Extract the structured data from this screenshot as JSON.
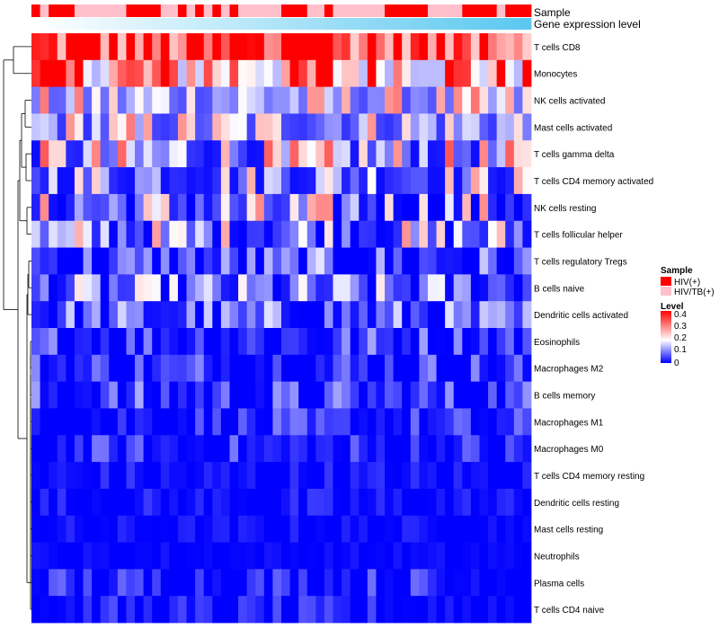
{
  "chart_data": {
    "type": "heatmap",
    "title": "",
    "annotation_tracks": [
      {
        "name": "Sample",
        "label": "Sample"
      },
      {
        "name": "Gene expression level",
        "label": "Gene expression level"
      }
    ],
    "sample_groups_legend_title": "Sample",
    "sample_groups": [
      {
        "label": "HIV(+)",
        "color": "#ff0000"
      },
      {
        "label": "HIV/TB(+)",
        "color": "#ffc0cb"
      }
    ],
    "sample_annotation": [
      0,
      1,
      0,
      0,
      0,
      1,
      1,
      1,
      1,
      1,
      1,
      0,
      0,
      0,
      0,
      1,
      1,
      0,
      1,
      0,
      1,
      0,
      1,
      0,
      1,
      1,
      1,
      1,
      1,
      0,
      0,
      0,
      1,
      1,
      0,
      1,
      1,
      1,
      1,
      1,
      1,
      0,
      0,
      0,
      0,
      0,
      1,
      1,
      1,
      1,
      0,
      0,
      0,
      0,
      1,
      0,
      0,
      0
    ],
    "gene_expression_gradient": [
      "#ffffff",
      "#5bc8f0"
    ],
    "colorbar": {
      "title": "Level",
      "ticks": [
        "0.4",
        "0.3",
        "0.2",
        "0.1",
        "0"
      ],
      "min": 0,
      "mid": 0.2,
      "max": 0.45,
      "low_color": "#0000ff",
      "mid_color": "#ffffff",
      "high_color": "#ff0000"
    },
    "n_columns": 58,
    "rows": [
      {
        "label": "T cells CD8",
        "base": 0.35,
        "spread": 0.1
      },
      {
        "label": "Monocytes",
        "base": 0.27,
        "spread": 0.13
      },
      {
        "label": "NK cells activated",
        "base": 0.13,
        "spread": 0.07
      },
      {
        "label": "Mast cells activated",
        "base": 0.12,
        "spread": 0.08
      },
      {
        "label": "T cells gamma delta",
        "base": 0.1,
        "spread": 0.09
      },
      {
        "label": "T cells CD4 memory activated",
        "base": 0.09,
        "spread": 0.08
      },
      {
        "label": "NK cells resting",
        "base": 0.07,
        "spread": 0.09
      },
      {
        "label": "T cells follicular helper",
        "base": 0.08,
        "spread": 0.08
      },
      {
        "label": "T cells regulatory  Tregs",
        "base": 0.03,
        "spread": 0.05
      },
      {
        "label": "B cells naive",
        "base": 0.05,
        "spread": 0.06
      },
      {
        "label": "Dendritic cells activated",
        "base": 0.04,
        "spread": 0.05
      },
      {
        "label": "Eosinophils",
        "base": 0.03,
        "spread": 0.04
      },
      {
        "label": "Macrophages M2",
        "base": 0.02,
        "spread": 0.04
      },
      {
        "label": "B cells memory",
        "base": 0.02,
        "spread": 0.04
      },
      {
        "label": "Macrophages M1",
        "base": 0.01,
        "spread": 0.03
      },
      {
        "label": "Macrophages M0",
        "base": 0.01,
        "spread": 0.03
      },
      {
        "label": "T cells CD4 memory resting",
        "base": 0.005,
        "spread": 0.015
      },
      {
        "label": "Dendritic cells resting",
        "base": 0.005,
        "spread": 0.015
      },
      {
        "label": "Mast cells resting",
        "base": 0.004,
        "spread": 0.01
      },
      {
        "label": "Neutrophils",
        "base": 0.002,
        "spread": 0.006
      },
      {
        "label": "Plasma cells",
        "base": 0.01,
        "spread": 0.03
      },
      {
        "label": "T cells CD4 naive",
        "base": 0.005,
        "spread": 0.02
      }
    ],
    "row_dendrogram": "left"
  }
}
